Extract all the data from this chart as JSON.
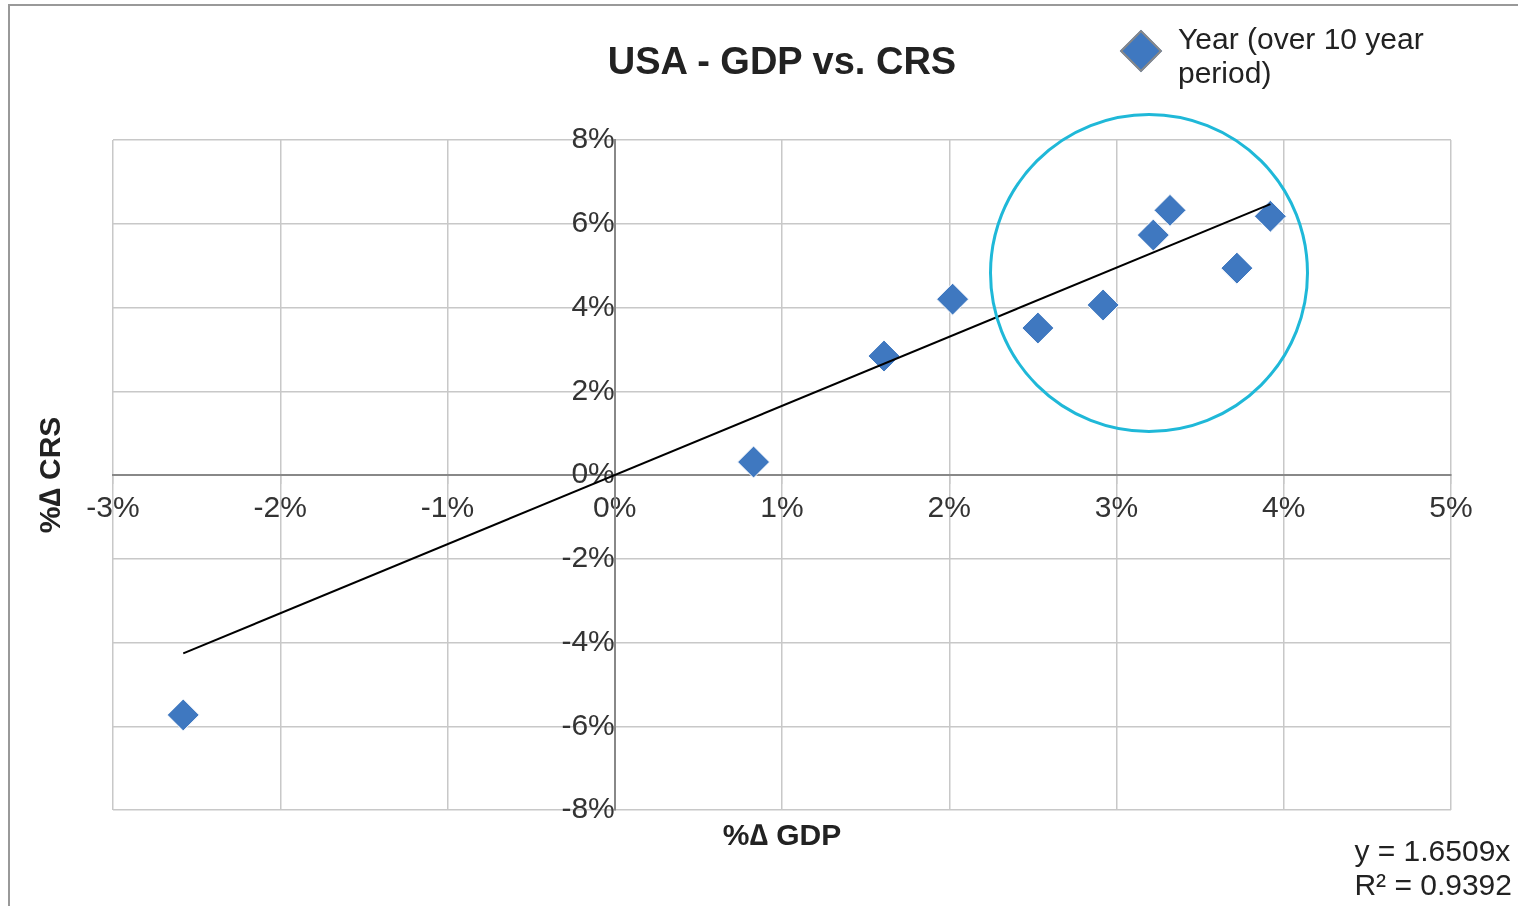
{
  "chart_data": {
    "type": "scatter",
    "title": "USA - GDP vs. CRS",
    "xlabel": "%∆ GDP",
    "ylabel": "%∆ CRS",
    "xlim": [
      -3,
      5
    ],
    "ylim": [
      -8,
      8
    ],
    "xticks": [
      {
        "value": -3,
        "label": "-3%"
      },
      {
        "value": -2,
        "label": "-2%"
      },
      {
        "value": -1,
        "label": "-1%"
      },
      {
        "value": 0,
        "label": "0%"
      },
      {
        "value": 1,
        "label": "1%"
      },
      {
        "value": 2,
        "label": "2%"
      },
      {
        "value": 3,
        "label": "3%"
      },
      {
        "value": 4,
        "label": "4%"
      },
      {
        "value": 5,
        "label": "5%"
      }
    ],
    "yticks": [
      {
        "value": -8,
        "label": "-8%"
      },
      {
        "value": -6,
        "label": "-6%"
      },
      {
        "value": -4,
        "label": "-4%"
      },
      {
        "value": -2,
        "label": "-2%"
      },
      {
        "value": 0,
        "label": "0%"
      },
      {
        "value": 2,
        "label": "2%"
      },
      {
        "value": 4,
        "label": "4%"
      },
      {
        "value": 6,
        "label": "6%"
      },
      {
        "value": 8,
        "label": "8%"
      }
    ],
    "grid": true,
    "legend": "top right",
    "marker": "diamond",
    "series": [
      {
        "name": "Year (over 10 year period)",
        "color": "#3f78c0",
        "x": [
          -2.58,
          0.83,
          1.61,
          2.02,
          2.53,
          2.92,
          3.22,
          3.32,
          3.72,
          3.92
        ],
        "values": [
          -5.73,
          0.31,
          2.84,
          4.2,
          3.51,
          4.06,
          5.73,
          6.32,
          4.94,
          6.18
        ]
      },
      {
        "type": "line",
        "color": "#000000",
        "marker": "none",
        "line_style": "solid",
        "x": [
          -2.58,
          3.92
        ],
        "values": [
          -4.26,
          6.47
        ]
      }
    ],
    "annotations": [
      "y = 1.6509x",
      "R² = 0.9392"
    ]
  }
}
